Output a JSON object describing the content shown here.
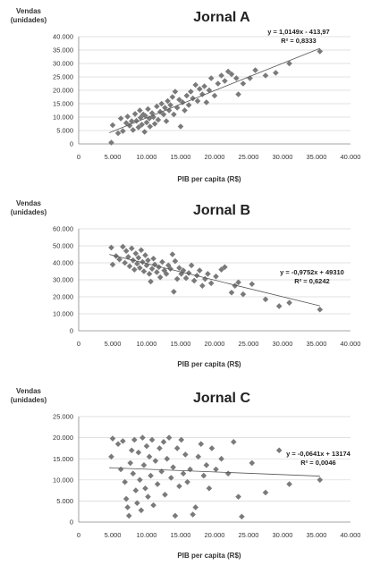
{
  "chart_data": [
    {
      "type": "scatter",
      "title": "Jornal A",
      "ylabel_lines": [
        "Vendas",
        "(unidades)"
      ],
      "xlabel": "PIB per capita (R$)",
      "xlim": [
        0,
        40000
      ],
      "ylim": [
        0,
        40000
      ],
      "x_ticks": [
        "0",
        "5.000",
        "10.000",
        "15.000",
        "20.000",
        "25.000",
        "30.000",
        "35.000",
        "40.000"
      ],
      "y_ticks": [
        "0",
        "5.000",
        "10.000",
        "15.000",
        "20.000",
        "25.000",
        "30.000",
        "35.000",
        "40.000"
      ],
      "grid": true,
      "trendline": {
        "slope": 1.0149,
        "intercept": -413.97,
        "x_range": [
          4500,
          35500
        ]
      },
      "equation_lines": [
        "y = 1,0149x - 413,97",
        "R² = 0,8333"
      ],
      "marker_color": "#7a7a7a",
      "points": [
        [
          4800,
          500
        ],
        [
          5000,
          7000
        ],
        [
          5800,
          4000
        ],
        [
          6200,
          9500
        ],
        [
          6500,
          4800
        ],
        [
          7000,
          7800
        ],
        [
          7200,
          10200
        ],
        [
          7500,
          6800
        ],
        [
          7800,
          8500
        ],
        [
          8000,
          5200
        ],
        [
          8300,
          11200
        ],
        [
          8500,
          8600
        ],
        [
          8800,
          6200
        ],
        [
          9000,
          12500
        ],
        [
          9100,
          9800
        ],
        [
          9300,
          7200
        ],
        [
          9500,
          11000
        ],
        [
          9700,
          4500
        ],
        [
          9800,
          10500
        ],
        [
          10000,
          8000
        ],
        [
          10200,
          13000
        ],
        [
          10400,
          9500
        ],
        [
          10500,
          6500
        ],
        [
          10800,
          11500
        ],
        [
          11000,
          10000
        ],
        [
          11200,
          7500
        ],
        [
          11500,
          14000
        ],
        [
          11700,
          9000
        ],
        [
          12000,
          12000
        ],
        [
          12200,
          15000
        ],
        [
          12500,
          11000
        ],
        [
          12700,
          13500
        ],
        [
          12900,
          8500
        ],
        [
          13100,
          16000
        ],
        [
          13300,
          12500
        ],
        [
          13500,
          14500
        ],
        [
          13800,
          17500
        ],
        [
          14000,
          11000
        ],
        [
          14200,
          19500
        ],
        [
          14500,
          13500
        ],
        [
          14800,
          16500
        ],
        [
          15000,
          6500
        ],
        [
          15300,
          15500
        ],
        [
          15600,
          12500
        ],
        [
          15900,
          18000
        ],
        [
          16200,
          14500
        ],
        [
          16500,
          19500
        ],
        [
          16800,
          17000
        ],
        [
          17200,
          22000
        ],
        [
          17500,
          16000
        ],
        [
          17800,
          20500
        ],
        [
          18200,
          18500
        ],
        [
          18500,
          21500
        ],
        [
          18800,
          15500
        ],
        [
          19200,
          20000
        ],
        [
          19500,
          24500
        ],
        [
          20000,
          18000
        ],
        [
          20500,
          22500
        ],
        [
          21000,
          25500
        ],
        [
          21500,
          23500
        ],
        [
          22000,
          27000
        ],
        [
          22500,
          26000
        ],
        [
          23200,
          24500
        ],
        [
          23500,
          18500
        ],
        [
          24200,
          22500
        ],
        [
          25200,
          24500
        ],
        [
          26000,
          27500
        ],
        [
          27500,
          25500
        ],
        [
          29000,
          26500
        ],
        [
          31000,
          30000
        ],
        [
          35500,
          34500
        ]
      ]
    },
    {
      "type": "scatter",
      "title": "Jornal B",
      "ylabel_lines": [
        "Vendas",
        "(unidades)"
      ],
      "xlabel": "PIB per capita (R$)",
      "xlim": [
        0,
        40000
      ],
      "ylim": [
        0,
        60000
      ],
      "x_ticks": [
        "0",
        "5.000",
        "10.000",
        "15.000",
        "20.000",
        "25.000",
        "30.000",
        "35.000",
        "40.000"
      ],
      "y_ticks": [
        "0",
        "10.000",
        "20.000",
        "30.000",
        "40.000",
        "50.000",
        "60.000"
      ],
      "grid": true,
      "trendline": {
        "slope": -0.9752,
        "intercept": 49310,
        "x_range": [
          4500,
          35500
        ]
      },
      "equation_lines": [
        "y = -0,9752x + 49310",
        "R² = 0,6242"
      ],
      "marker_color": "#7a7a7a",
      "points": [
        [
          4800,
          49000
        ],
        [
          5000,
          39000
        ],
        [
          5500,
          44000
        ],
        [
          6000,
          42000
        ],
        [
          6500,
          49500
        ],
        [
          6800,
          40000
        ],
        [
          7000,
          47000
        ],
        [
          7300,
          43500
        ],
        [
          7500,
          38000
        ],
        [
          7800,
          48500
        ],
        [
          8000,
          41500
        ],
        [
          8200,
          36000
        ],
        [
          8400,
          45500
        ],
        [
          8600,
          39500
        ],
        [
          8800,
          43000
        ],
        [
          9000,
          37000
        ],
        [
          9200,
          47500
        ],
        [
          9400,
          40500
        ],
        [
          9600,
          35000
        ],
        [
          9800,
          44500
        ],
        [
          10000,
          38500
        ],
        [
          10200,
          41500
        ],
        [
          10400,
          33500
        ],
        [
          10600,
          29000
        ],
        [
          10800,
          36500
        ],
        [
          11000,
          42500
        ],
        [
          11200,
          39000
        ],
        [
          11500,
          34500
        ],
        [
          11800,
          37500
        ],
        [
          12000,
          31500
        ],
        [
          12300,
          40500
        ],
        [
          12600,
          35500
        ],
        [
          12900,
          33500
        ],
        [
          13200,
          38500
        ],
        [
          13500,
          36500
        ],
        [
          13800,
          45000
        ],
        [
          14000,
          23000
        ],
        [
          14200,
          41000
        ],
        [
          14500,
          30500
        ],
        [
          14800,
          37000
        ],
        [
          15100,
          33500
        ],
        [
          15400,
          35500
        ],
        [
          15800,
          31000
        ],
        [
          16200,
          34000
        ],
        [
          16600,
          38500
        ],
        [
          17000,
          29500
        ],
        [
          17400,
          32500
        ],
        [
          17800,
          35500
        ],
        [
          18200,
          26500
        ],
        [
          18600,
          30500
        ],
        [
          19000,
          33500
        ],
        [
          19500,
          28000
        ],
        [
          20200,
          32000
        ],
        [
          21000,
          36000
        ],
        [
          21500,
          37500
        ],
        [
          22500,
          22500
        ],
        [
          23000,
          26500
        ],
        [
          23500,
          28500
        ],
        [
          24200,
          21500
        ],
        [
          25500,
          27500
        ],
        [
          27500,
          18500
        ],
        [
          29500,
          14500
        ],
        [
          31000,
          16500
        ],
        [
          35500,
          12500
        ]
      ]
    },
    {
      "type": "scatter",
      "title": "Jornal C",
      "ylabel_lines": [
        "Vendas",
        "(unidades)"
      ],
      "xlabel": "PIB per capita (R$)",
      "xlim": [
        0,
        40000
      ],
      "ylim": [
        0,
        25000
      ],
      "x_ticks": [
        "0",
        "5.000",
        "10.000",
        "15.000",
        "20.000",
        "25.000",
        "30.000",
        "35.000",
        "40.000"
      ],
      "y_ticks": [
        "0",
        "5.000",
        "10.000",
        "15.000",
        "20.000",
        "25.000"
      ],
      "grid": true,
      "trendline": {
        "slope": -0.0641,
        "intercept": 13174,
        "x_range": [
          4500,
          35500
        ]
      },
      "equation_lines": [
        "y = -0,0641x + 13174",
        "R² = 0,0046"
      ],
      "marker_color": "#7a7a7a",
      "points": [
        [
          4800,
          15500
        ],
        [
          5000,
          19800
        ],
        [
          5800,
          18500
        ],
        [
          6200,
          12500
        ],
        [
          6500,
          19200
        ],
        [
          6800,
          9500
        ],
        [
          7000,
          5500
        ],
        [
          7200,
          3500
        ],
        [
          7400,
          1500
        ],
        [
          7600,
          14000
        ],
        [
          7800,
          17000
        ],
        [
          8000,
          11500
        ],
        [
          8200,
          19500
        ],
        [
          8400,
          7500
        ],
        [
          8600,
          4500
        ],
        [
          8800,
          16500
        ],
        [
          9000,
          10000
        ],
        [
          9200,
          2800
        ],
        [
          9400,
          20000
        ],
        [
          9600,
          13500
        ],
        [
          9800,
          8000
        ],
        [
          10000,
          18000
        ],
        [
          10200,
          6000
        ],
        [
          10400,
          15500
        ],
        [
          10600,
          11000
        ],
        [
          10800,
          19500
        ],
        [
          11000,
          4000
        ],
        [
          11300,
          14500
        ],
        [
          11600,
          9000
        ],
        [
          11900,
          17500
        ],
        [
          12200,
          12000
        ],
        [
          12500,
          19000
        ],
        [
          12700,
          6500
        ],
        [
          13000,
          15000
        ],
        [
          13300,
          20000
        ],
        [
          13600,
          10500
        ],
        [
          13900,
          13000
        ],
        [
          14200,
          1500
        ],
        [
          14500,
          17500
        ],
        [
          14800,
          8500
        ],
        [
          15100,
          19500
        ],
        [
          15400,
          11500
        ],
        [
          15700,
          16000
        ],
        [
          16000,
          9500
        ],
        [
          16400,
          12500
        ],
        [
          16800,
          1800
        ],
        [
          17200,
          3500
        ],
        [
          17600,
          15500
        ],
        [
          18000,
          18500
        ],
        [
          18400,
          11000
        ],
        [
          18800,
          13500
        ],
        [
          19200,
          8000
        ],
        [
          19600,
          17500
        ],
        [
          20200,
          12500
        ],
        [
          21000,
          15000
        ],
        [
          22000,
          11500
        ],
        [
          22800,
          19000
        ],
        [
          23500,
          6000
        ],
        [
          24000,
          1300
        ],
        [
          25500,
          14000
        ],
        [
          27500,
          7000
        ],
        [
          29500,
          17000
        ],
        [
          31000,
          9000
        ],
        [
          35500,
          10000
        ]
      ]
    }
  ]
}
